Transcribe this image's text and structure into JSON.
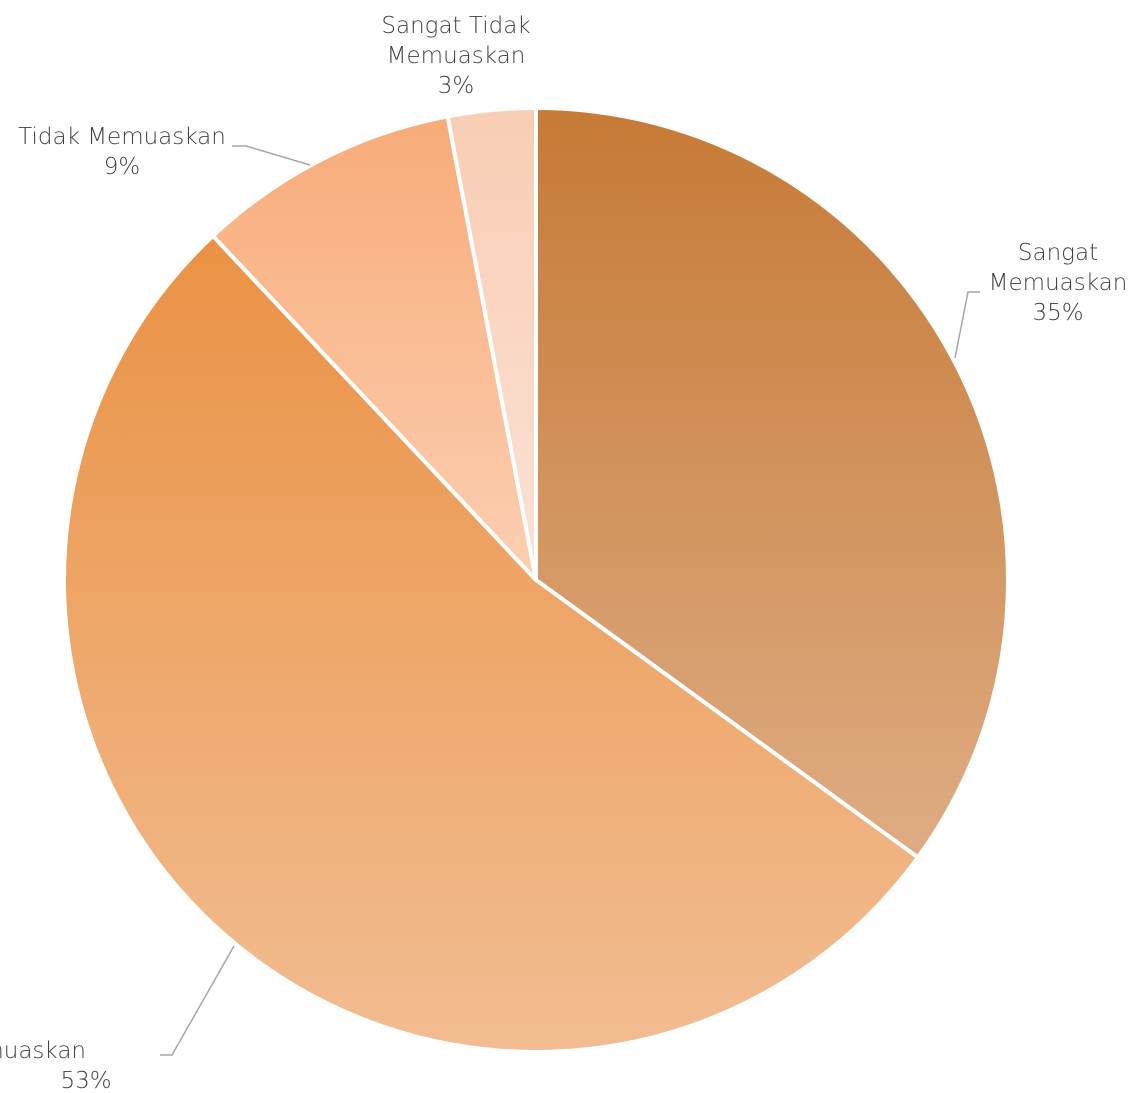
{
  "chart_data": {
    "type": "pie",
    "title": "",
    "slices": [
      {
        "name": "Sangat Memuaskan",
        "value": 35,
        "label_lines": [
          "Sangat",
          "Memuaskan"
        ],
        "pct_label": "35%",
        "color_top": "#c67a36",
        "color_bottom": "#deac83"
      },
      {
        "name": "Memuaskan",
        "value": 53,
        "label_lines": [
          "Memuaskan"
        ],
        "pct_label": "53%",
        "color_top": "#ea9244",
        "color_bottom": "#f2bd92"
      },
      {
        "name": "Tidak Memuaskan",
        "value": 9,
        "label_lines": [
          "Tidak Memuaskan"
        ],
        "pct_label": "9%",
        "color_top": "#f8ab79",
        "color_bottom": "#fbcfb2"
      },
      {
        "name": "Sangat Tidak Memuaskan",
        "value": 3,
        "label_lines": [
          "Sangat Tidak",
          "Memuaskan"
        ],
        "pct_label": "3%",
        "color_top": "#f9cdb4",
        "color_bottom": "#fbe2d6"
      }
    ],
    "legend": "none",
    "data_labels": "outside with leader lines"
  }
}
